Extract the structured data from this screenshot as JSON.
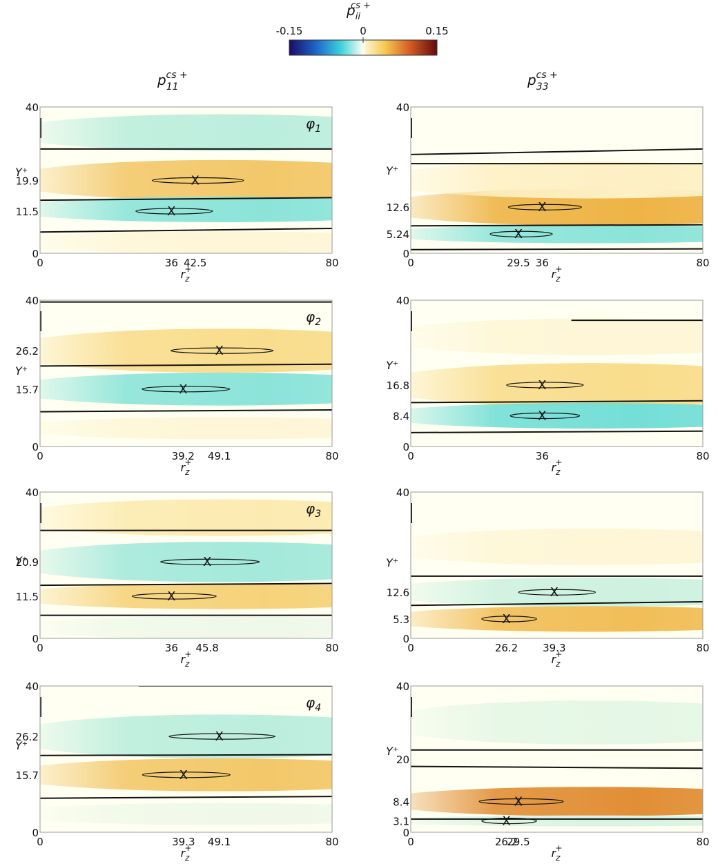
{
  "colorbar": {
    "title": "p_ii^{cs+}",
    "title_base": "p",
    "title_sub": "ii",
    "title_sup": "cs +",
    "min_label": "-0.15",
    "mid_label": "0",
    "max_label": "0.15",
    "range": [
      -0.15,
      0.15
    ]
  },
  "columns": [
    {
      "base": "p",
      "sub": "11",
      "sup": "cs +"
    },
    {
      "base": "p",
      "sub": "33",
      "sup": "cs +"
    }
  ],
  "chart_data": [
    {
      "type": "heatmap",
      "row": 0,
      "col": 0,
      "phi_base": "φ",
      "phi_sub": "1",
      "xlabel_base": "r",
      "xlabel_sub": "z",
      "xlabel_sup": "+",
      "ylabel": "Y⁺",
      "xlim": [
        0,
        80
      ],
      "ylim": [
        0,
        40
      ],
      "x_ticks": [
        "0",
        "36",
        "42.5",
        "80"
      ],
      "x_tick_values": [
        0,
        36,
        42.5,
        80
      ],
      "y_ticks": [
        "0",
        "11.5",
        "19.9",
        "40"
      ],
      "y_tick_values": [
        0,
        11.5,
        19.9,
        40
      ],
      "bands": [
        {
          "yc": 33,
          "h": 5,
          "v": -0.05
        },
        {
          "yc": 20,
          "h": 5.5,
          "v": 0.07
        },
        {
          "yc": 12,
          "h": 3.5,
          "v": -0.07
        },
        {
          "yc": 3,
          "h": 3,
          "v": 0.01
        }
      ],
      "contours": [
        [
          [
            0,
            28.5
          ],
          [
            80,
            28.5
          ]
        ],
        [
          [
            0,
            14.5
          ],
          [
            80,
            15.2
          ]
        ],
        [
          [
            0,
            5.8
          ],
          [
            80,
            6.8
          ]
        ]
      ],
      "peaks": [
        {
          "x": 42.5,
          "y": 19.9,
          "w": 22
        },
        {
          "x": 36,
          "y": 11.5,
          "w": 18
        }
      ]
    },
    {
      "type": "heatmap",
      "row": 0,
      "col": 1,
      "xlabel_base": "r",
      "xlabel_sub": "z",
      "xlabel_sup": "+",
      "ylabel": "Y⁺",
      "xlim": [
        0,
        80
      ],
      "ylim": [
        0,
        40
      ],
      "x_ticks": [
        "0",
        "29.5",
        "36",
        "80"
      ],
      "x_tick_values": [
        0,
        29.5,
        36,
        80
      ],
      "y_ticks": [
        "0",
        "5.24",
        "12.6",
        "40"
      ],
      "y_tick_values": [
        0,
        5.24,
        12.6,
        40
      ],
      "bands": [
        {
          "yc": 12.6,
          "h": 5,
          "v": 0.09
        },
        {
          "yc": 5.24,
          "h": 2.5,
          "v": -0.07
        },
        {
          "yc": 20,
          "h": 5,
          "v": 0.02
        }
      ],
      "contours": [
        [
          [
            0,
            27
          ],
          [
            80,
            28.5
          ]
        ],
        [
          [
            0,
            24.5
          ],
          [
            80,
            24.5
          ]
        ],
        [
          [
            0,
            7.5
          ],
          [
            80,
            7.8
          ]
        ],
        [
          [
            0,
            1
          ],
          [
            80,
            1.2
          ]
        ]
      ],
      "peaks": [
        {
          "x": 36,
          "y": 12.6,
          "w": 17
        },
        {
          "x": 29.5,
          "y": 5.24,
          "w": 14
        }
      ]
    },
    {
      "type": "heatmap",
      "row": 1,
      "col": 0,
      "phi_base": "φ",
      "phi_sub": "2",
      "xlabel_base": "r",
      "xlabel_sub": "z",
      "xlabel_sup": "+",
      "ylabel": "Y⁺",
      "xlim": [
        0,
        80
      ],
      "ylim": [
        0,
        40
      ],
      "x_ticks": [
        "0",
        "39.2",
        "49.1",
        "80"
      ],
      "x_tick_values": [
        0,
        39.2,
        49.1,
        80
      ],
      "y_ticks": [
        "0",
        "15.7",
        "26.2",
        "40"
      ],
      "y_tick_values": [
        0,
        15.7,
        26.2,
        40
      ],
      "bands": [
        {
          "yc": 26.2,
          "h": 6,
          "v": 0.05
        },
        {
          "yc": 15.7,
          "h": 4.5,
          "v": -0.07
        },
        {
          "yc": 5,
          "h": 3,
          "v": 0.01
        }
      ],
      "contours": [
        [
          [
            0,
            39.5
          ],
          [
            80,
            39.5
          ]
        ],
        [
          [
            0,
            22
          ],
          [
            80,
            22.5
          ]
        ],
        [
          [
            0,
            9.5
          ],
          [
            80,
            10
          ]
        ]
      ],
      "peaks": [
        {
          "x": 49.1,
          "y": 26.2,
          "w": 25
        },
        {
          "x": 39.2,
          "y": 15.7,
          "w": 21
        }
      ]
    },
    {
      "type": "heatmap",
      "row": 1,
      "col": 1,
      "xlabel_base": "r",
      "xlabel_sub": "z",
      "xlabel_sup": "+",
      "ylabel": "Y⁺",
      "xlim": [
        0,
        80
      ],
      "ylim": [
        0,
        40
      ],
      "x_ticks": [
        "0",
        "36",
        "80"
      ],
      "x_tick_values": [
        0,
        36,
        80
      ],
      "y_ticks": [
        "0",
        "8.4",
        "16.8",
        "40"
      ],
      "y_tick_values": [
        0,
        8.4,
        16.8,
        40
      ],
      "bands": [
        {
          "yc": 16.8,
          "h": 6,
          "v": 0.05
        },
        {
          "yc": 8.4,
          "h": 3.5,
          "v": -0.08
        },
        {
          "yc": 30,
          "h": 5,
          "v": 0.01
        }
      ],
      "contours": [
        [
          [
            44,
            34.5
          ],
          [
            80,
            34.5
          ]
        ],
        [
          [
            0,
            12
          ],
          [
            80,
            12.5
          ]
        ],
        [
          [
            0,
            3.8
          ],
          [
            80,
            4.2
          ]
        ]
      ],
      "peaks": [
        {
          "x": 36,
          "y": 16.8,
          "w": 18
        },
        {
          "x": 36,
          "y": 8.4,
          "w": 16
        }
      ]
    },
    {
      "type": "heatmap",
      "row": 2,
      "col": 0,
      "phi_base": "φ",
      "phi_sub": "3",
      "xlabel_base": "r",
      "xlabel_sub": "z",
      "xlabel_sup": "+",
      "ylabel": "Y⁺",
      "xlim": [
        0,
        80
      ],
      "ylim": [
        0,
        40
      ],
      "x_ticks": [
        "0",
        "36",
        "45.8",
        "80"
      ],
      "x_tick_values": [
        0,
        36,
        45.8,
        80
      ],
      "y_ticks": [
        "0",
        "11.5",
        "20.9",
        "40"
      ],
      "y_tick_values": [
        0,
        11.5,
        20.9,
        40
      ],
      "bands": [
        {
          "yc": 33,
          "h": 5,
          "v": 0.03
        },
        {
          "yc": 20.9,
          "h": 5.5,
          "v": -0.06
        },
        {
          "yc": 11.5,
          "h": 3.5,
          "v": 0.06
        },
        {
          "yc": 3,
          "h": 3,
          "v": -0.01
        }
      ],
      "contours": [
        [
          [
            0,
            29.5
          ],
          [
            80,
            29.5
          ]
        ],
        [
          [
            0,
            14.5
          ],
          [
            80,
            15
          ]
        ],
        [
          [
            0,
            6.3
          ],
          [
            80,
            6.3
          ]
        ]
      ],
      "peaks": [
        {
          "x": 45.8,
          "y": 20.9,
          "w": 24
        },
        {
          "x": 36,
          "y": 11.5,
          "w": 20
        }
      ]
    },
    {
      "type": "heatmap",
      "row": 2,
      "col": 1,
      "xlabel_base": "r",
      "xlabel_sub": "z",
      "xlabel_sup": "+",
      "ylabel": "Y⁺",
      "xlim": [
        0,
        80
      ],
      "ylim": [
        0,
        40
      ],
      "x_ticks": [
        "0",
        "26.2",
        "39.3",
        "80"
      ],
      "x_tick_values": [
        0,
        26.2,
        39.3,
        80
      ],
      "y_ticks": [
        "0",
        "5.3",
        "12.6",
        "40"
      ],
      "y_tick_values": [
        0,
        5.3,
        12.6,
        40
      ],
      "bands": [
        {
          "yc": 12.6,
          "h": 4,
          "v": -0.04
        },
        {
          "yc": 5.3,
          "h": 3.5,
          "v": 0.08
        },
        {
          "yc": 25,
          "h": 5,
          "v": 0.01
        }
      ],
      "contours": [
        [
          [
            0,
            17
          ],
          [
            80,
            17
          ]
        ],
        [
          [
            0,
            9
          ],
          [
            80,
            10
          ]
        ]
      ],
      "peaks": [
        {
          "x": 39.3,
          "y": 12.6,
          "w": 18
        },
        {
          "x": 26.2,
          "y": 5.3,
          "w": 12
        }
      ]
    },
    {
      "type": "heatmap",
      "row": 3,
      "col": 0,
      "phi_base": "φ",
      "phi_sub": "4",
      "xlabel_base": "r",
      "xlabel_sub": "z",
      "xlabel_sup": "+",
      "ylabel": "Y⁺",
      "xlim": [
        0,
        80
      ],
      "ylim": [
        0,
        40
      ],
      "x_ticks": [
        "0",
        "39.3",
        "49.1",
        "80"
      ],
      "x_tick_values": [
        0,
        39.3,
        49.1,
        80
      ],
      "y_ticks": [
        "0",
        "15.7",
        "26.2",
        "40"
      ],
      "y_tick_values": [
        0,
        15.7,
        26.2,
        40
      ],
      "bands": [
        {
          "yc": 26.2,
          "h": 6,
          "v": -0.05
        },
        {
          "yc": 15.7,
          "h": 4.5,
          "v": 0.07
        },
        {
          "yc": 5,
          "h": 3,
          "v": -0.01
        }
      ],
      "contours": [
        [
          [
            27,
            40
          ],
          [
            80,
            40
          ]
        ],
        [
          [
            0,
            21
          ],
          [
            80,
            21.2
          ]
        ],
        [
          [
            0,
            9.3
          ],
          [
            80,
            9.8
          ]
        ]
      ],
      "peaks": [
        {
          "x": 49.1,
          "y": 26.2,
          "w": 26
        },
        {
          "x": 39.3,
          "y": 15.7,
          "w": 21
        }
      ]
    },
    {
      "type": "heatmap",
      "row": 3,
      "col": 1,
      "xlabel_base": "r",
      "xlabel_sub": "z",
      "xlabel_sup": "+",
      "ylabel": "Y⁺",
      "xlim": [
        0,
        80
      ],
      "ylim": [
        0,
        40
      ],
      "x_ticks": [
        "0",
        "26.2",
        "29.5",
        "80"
      ],
      "x_tick_values": [
        0,
        26.2,
        29.5,
        80
      ],
      "y_ticks": [
        "0",
        "3.1",
        "8.4",
        "20",
        "40"
      ],
      "y_tick_values": [
        0,
        3.1,
        8.4,
        20,
        40
      ],
      "bands": [
        {
          "yc": 8.4,
          "h": 4,
          "v": 0.11
        },
        {
          "yc": 3.1,
          "h": 1.5,
          "v": -0.03
        },
        {
          "yc": 30,
          "h": 6,
          "v": -0.02
        }
      ],
      "contours": [
        [
          [
            0,
            22.5
          ],
          [
            80,
            22.5
          ]
        ],
        [
          [
            0,
            18
          ],
          [
            80,
            17.5
          ]
        ],
        [
          [
            0,
            3.6
          ],
          [
            80,
            3.6
          ]
        ]
      ],
      "peaks": [
        {
          "x": 29.5,
          "y": 8.4,
          "w": 20
        },
        {
          "x": 26.2,
          "y": 3.1,
          "w": 12
        }
      ]
    }
  ]
}
